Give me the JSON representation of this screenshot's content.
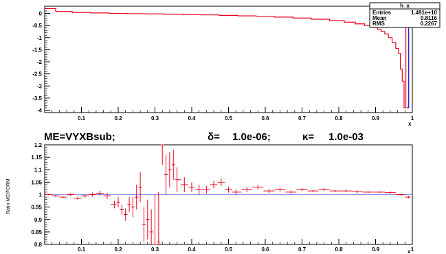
{
  "colors": {
    "mc": "#e8001c",
    "form": "#2f1fd6",
    "ratio": "#e8001c",
    "unity": "#8b8bff",
    "frame": "#000000"
  },
  "top_panel": {
    "stats_box": {
      "name": "h_x",
      "rows": [
        {
          "label": "Entries",
          "value": "1.491e+10"
        },
        {
          "label": "Mean",
          "value": "0.8116"
        },
        {
          "label": "RMS",
          "value": "0.2267"
        }
      ]
    },
    "xlabel": "x",
    "xticks": [
      "0.1",
      "0.2",
      "0.3",
      "0.4",
      "0.5",
      "0.6",
      "0.7",
      "0.8",
      "0.9",
      "1"
    ],
    "yticks": [
      "0",
      "-0.5",
      "-1",
      "-1.5",
      "-2",
      "-2.5",
      "-3",
      "-3.5",
      "-4"
    ]
  },
  "bottom_panel": {
    "title_parts": {
      "me": "ME=VYXBsub;",
      "delta": "δ=",
      "delta_val": "1.0e-06;",
      "kappa": "κ=",
      "kappa_val": "1.0e-03"
    },
    "ylabel": "Ratio MC/FORM",
    "xlabel": "x",
    "xticks": [
      "0.1",
      "0.2",
      "0.3",
      "0.4",
      "0.5",
      "0.6",
      "0.7",
      "0.8",
      "0.9",
      "1"
    ],
    "yticks": [
      "1.2",
      "1.15",
      "1.1",
      "1.05",
      "1",
      "0.95",
      "0.9",
      "0.85",
      "0.8"
    ]
  },
  "chart_data": [
    {
      "type": "line",
      "panel": "top",
      "title": "",
      "xlabel": "x",
      "ylabel": "",
      "xlim": [
        0.0,
        1.0
      ],
      "ylim": [
        -4.1,
        0.3
      ],
      "series": [
        {
          "name": "",
          "style": "histogram",
          "x": [
            0.01,
            0.05,
            0.1,
            0.15,
            0.2,
            0.25,
            0.3,
            0.35,
            0.4,
            0.45,
            0.5,
            0.55,
            0.6,
            0.65,
            0.7,
            0.75,
            0.8,
            0.83,
            0.86,
            0.88,
            0.9,
            0.91,
            0.92,
            0.93,
            0.94,
            0.95,
            0.96,
            0.965,
            0.97,
            0.975,
            0.98,
            0.985
          ],
          "y": [
            0.2,
            0.08,
            0.04,
            0.02,
            0.0,
            -0.01,
            -0.02,
            -0.03,
            -0.05,
            -0.06,
            -0.08,
            -0.1,
            -0.12,
            -0.15,
            -0.19,
            -0.24,
            -0.3,
            -0.36,
            -0.43,
            -0.5,
            -0.58,
            -0.65,
            -0.75,
            -0.85,
            -1.0,
            -1.2,
            -1.45,
            -1.65,
            -2.3,
            -2.8,
            -3.9,
            -0.05
          ]
        }
      ]
    },
    {
      "type": "line",
      "panel": "bottom",
      "title": "ME=VYXBsub;   δ=  1.0e-06;   κ=  1.0e-03",
      "xlabel": "x",
      "ylabel": "Ratio MC/FORM",
      "xlim": [
        0.0,
        1.0
      ],
      "ylim": [
        0.8,
        1.2
      ],
      "reference_line": 1.0,
      "series": [
        {
          "name": "",
          "style": "errorbars",
          "x": [
            0.01,
            0.03,
            0.05,
            0.07,
            0.09,
            0.11,
            0.13,
            0.15,
            0.17,
            0.19,
            0.2,
            0.21,
            0.22,
            0.23,
            0.24,
            0.25,
            0.26,
            0.27,
            0.28,
            0.29,
            0.3,
            0.31,
            0.32,
            0.33,
            0.34,
            0.35,
            0.36,
            0.38,
            0.4,
            0.42,
            0.44,
            0.46,
            0.48,
            0.5,
            0.52,
            0.55,
            0.58,
            0.61,
            0.64,
            0.67,
            0.7,
            0.73,
            0.76,
            0.79,
            0.82,
            0.85,
            0.88,
            0.91,
            0.94,
            0.97,
            0.99
          ],
          "y": [
            1.0,
            0.995,
            0.99,
            1.0,
            0.985,
            0.995,
            1.0,
            1.005,
            0.995,
            0.96,
            0.97,
            0.94,
            0.92,
            0.96,
            0.95,
            0.99,
            1.03,
            0.88,
            0.9,
            0.85,
            0.8,
            0.81,
            1.2,
            1.08,
            1.1,
            1.12,
            1.06,
            1.04,
            1.03,
            1.02,
            1.02,
            1.04,
            1.05,
            1.02,
            1.01,
            1.02,
            1.03,
            1.015,
            1.02,
            1.01,
            1.02,
            1.015,
            1.02,
            1.015,
            1.015,
            1.012,
            1.01,
            1.01,
            1.008,
            1.0,
            0.99
          ],
          "err": [
            0.003,
            0.004,
            0.004,
            0.005,
            0.006,
            0.007,
            0.008,
            0.01,
            0.012,
            0.015,
            0.02,
            0.02,
            0.025,
            0.03,
            0.04,
            0.05,
            0.06,
            0.07,
            0.08,
            0.09,
            0.2,
            0.2,
            0.08,
            0.08,
            0.07,
            0.06,
            0.05,
            0.03,
            0.02,
            0.02,
            0.015,
            0.015,
            0.015,
            0.012,
            0.01,
            0.01,
            0.01,
            0.008,
            0.008,
            0.007,
            0.007,
            0.006,
            0.006,
            0.005,
            0.005,
            0.005,
            0.004,
            0.004,
            0.004,
            0.004,
            0.005
          ]
        }
      ]
    }
  ]
}
